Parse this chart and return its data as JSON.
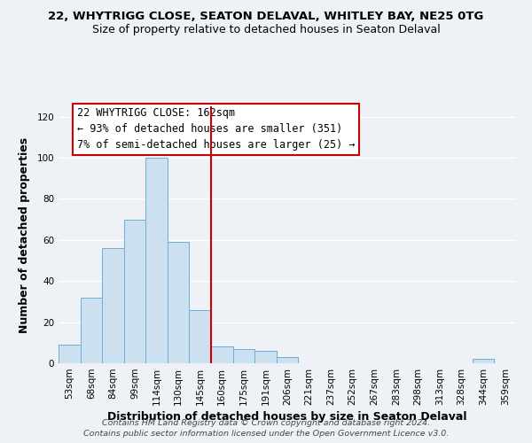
{
  "title_line1": "22, WHYTRIGG CLOSE, SEATON DELAVAL, WHITLEY BAY, NE25 0TG",
  "title_line2": "Size of property relative to detached houses in Seaton Delaval",
  "xlabel": "Distribution of detached houses by size in Seaton Delaval",
  "ylabel": "Number of detached properties",
  "bin_labels": [
    "53sqm",
    "68sqm",
    "84sqm",
    "99sqm",
    "114sqm",
    "130sqm",
    "145sqm",
    "160sqm",
    "175sqm",
    "191sqm",
    "206sqm",
    "221sqm",
    "237sqm",
    "252sqm",
    "267sqm",
    "283sqm",
    "298sqm",
    "313sqm",
    "328sqm",
    "344sqm",
    "359sqm"
  ],
  "bar_values": [
    9,
    32,
    56,
    70,
    100,
    59,
    26,
    8,
    7,
    6,
    3,
    0,
    0,
    0,
    0,
    0,
    0,
    0,
    0,
    2,
    0
  ],
  "bar_color": "#cce0f0",
  "bar_edge_color": "#6aaed6",
  "vline_position": 6.5,
  "vline_color": "#cc0000",
  "ylim": [
    0,
    125
  ],
  "yticks": [
    0,
    20,
    40,
    60,
    80,
    100,
    120
  ],
  "annotation_title": "22 WHYTRIGG CLOSE: 162sqm",
  "annotation_line1": "← 93% of detached houses are smaller (351)",
  "annotation_line2": "7% of semi-detached houses are larger (25) →",
  "footer_line1": "Contains HM Land Registry data © Crown copyright and database right 2024.",
  "footer_line2": "Contains public sector information licensed under the Open Government Licence v3.0.",
  "background_color": "#eef2f7",
  "grid_color": "#ffffff",
  "title_fontsize": 9.5,
  "subtitle_fontsize": 9,
  "axis_label_fontsize": 9,
  "tick_fontsize": 7.5,
  "annotation_fontsize": 8.5,
  "footer_fontsize": 6.8
}
